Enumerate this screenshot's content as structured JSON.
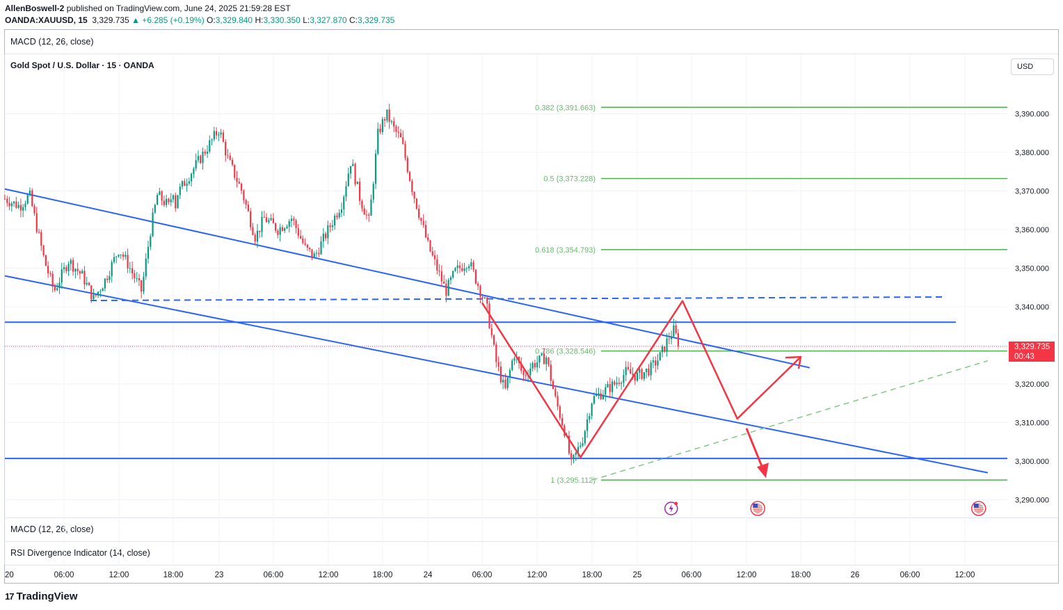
{
  "header": {
    "author": "AllenBoswell-2",
    "published_text": "published on TradingView.com, June 24, 2025 21:59:28 EST",
    "symbol": "OANDA:XAUUSD, 15",
    "last": "3,329.735",
    "change": "▲ +6.285 (+0.19%)",
    "o_label": "O:",
    "o_value": "3,329.840",
    "h_label": "H:",
    "h_value": "3,330.350",
    "l_label": "L:",
    "l_value": "3,327.870",
    "c_label": "C:",
    "c_value": "3,329.735"
  },
  "panes": {
    "macd_top": "MACD (12, 26, close)",
    "main_title": "Gold Spot / U.S. Dollar · 15 · OANDA",
    "macd_bottom": "MACD (12, 26, close)",
    "rsi": "RSI Divergence Indicator (14, close)"
  },
  "currency_button": "USD",
  "price_tag": {
    "price": "3,329.735",
    "countdown": "00:43"
  },
  "branding": {
    "logo": "TradingView",
    "mark": "17"
  },
  "colors": {
    "up": "#089981",
    "down": "#f23645",
    "trendline": "#2962ff",
    "fib": "#4caf50",
    "fib_text": "#66bb6a",
    "pattern": "#f23645",
    "event_lightning": "#9c27b0"
  },
  "events": [
    {
      "name": "lightning-event-icon",
      "x": "2025-06-25 03:45"
    },
    {
      "name": "us-flag-event-icon",
      "x": "2025-06-25 13:15"
    },
    {
      "name": "us-flag-event-icon",
      "x": "2025-06-26 13:30"
    }
  ],
  "chart_data": {
    "type": "candlestick",
    "title": "Gold Spot / U.S. Dollar · 15 · OANDA",
    "ylim": [
      3286.0,
      3400.0
    ],
    "y_ticks": [
      3290,
      3300,
      3310,
      3320,
      3330,
      3340,
      3350,
      3360,
      3370,
      3380,
      3390
    ],
    "y_tick_labels": [
      "3,290.000",
      "3,300.000",
      "3,310.000",
      "3,320.000",
      "3,330.000",
      "3,340.000",
      "3,350.000",
      "3,360.000",
      "3,370.000",
      "3,380.000",
      "3,390.000"
    ],
    "x_tick_labels": [
      "20",
      "06:00",
      "12:00",
      "18:00",
      "23",
      "06:00",
      "12:00",
      "18:00",
      "24",
      "06:00",
      "12:00",
      "18:00",
      "25",
      "06:00",
      "12:00",
      "18:00",
      "26",
      "06:00",
      "12:00"
    ],
    "x_ticks": [
      "2025-06-20 00:00",
      "2025-06-20 06:00",
      "2025-06-20 12:00",
      "2025-06-20 18:00",
      "2025-06-23 00:00",
      "2025-06-23 06:00",
      "2025-06-23 12:00",
      "2025-06-23 18:00",
      "2025-06-24 00:00",
      "2025-06-24 06:00",
      "2025-06-24 12:00",
      "2025-06-24 18:00",
      "2025-06-25 00:00",
      "2025-06-25 06:00",
      "2025-06-25 12:00",
      "2025-06-25 18:00",
      "2025-06-26 00:00",
      "2025-06-26 06:00",
      "2025-06-26 12:00"
    ],
    "last_price": 3329.735,
    "price_path": [
      {
        "x": "2025-06-20 00:00",
        "y": 3368
      },
      {
        "x": "2025-06-20 01:30",
        "y": 3366
      },
      {
        "x": "2025-06-20 02:30",
        "y": 3369
      },
      {
        "x": "2025-06-20 04:00",
        "y": 3352
      },
      {
        "x": "2025-06-20 05:00",
        "y": 3344
      },
      {
        "x": "2025-06-20 06:30",
        "y": 3352
      },
      {
        "x": "2025-06-20 08:00",
        "y": 3348
      },
      {
        "x": "2025-06-20 09:15",
        "y": 3342
      },
      {
        "x": "2025-06-20 10:30",
        "y": 3347
      },
      {
        "x": "2025-06-20 12:00",
        "y": 3355
      },
      {
        "x": "2025-06-20 13:00",
        "y": 3351
      },
      {
        "x": "2025-06-20 14:30",
        "y": 3344
      },
      {
        "x": "2025-06-20 15:30",
        "y": 3360
      },
      {
        "x": "2025-06-20 16:15",
        "y": 3369
      },
      {
        "x": "2025-06-20 17:30",
        "y": 3366
      },
      {
        "x": "2025-06-20 19:00",
        "y": 3371
      },
      {
        "x": "2025-06-20 20:30",
        "y": 3366
      },
      {
        "x": "2025-06-20 22:00",
        "y": 3369
      },
      {
        "x": "2025-06-23 00:00",
        "y": 3386
      },
      {
        "x": "2025-06-23 01:00",
        "y": 3378
      },
      {
        "x": "2025-06-23 02:30",
        "y": 3370
      },
      {
        "x": "2025-06-23 04:00",
        "y": 3358
      },
      {
        "x": "2025-06-23 05:00",
        "y": 3363
      },
      {
        "x": "2025-06-23 06:30",
        "y": 3360
      },
      {
        "x": "2025-06-23 08:00",
        "y": 3363
      },
      {
        "x": "2025-06-23 09:30",
        "y": 3355
      },
      {
        "x": "2025-06-23 10:30",
        "y": 3353
      },
      {
        "x": "2025-06-23 12:00",
        "y": 3360
      },
      {
        "x": "2025-06-23 13:30",
        "y": 3367
      },
      {
        "x": "2025-06-23 14:30",
        "y": 3378
      },
      {
        "x": "2025-06-23 15:30",
        "y": 3368
      },
      {
        "x": "2025-06-23 16:30",
        "y": 3362
      },
      {
        "x": "2025-06-23 17:30",
        "y": 3385
      },
      {
        "x": "2025-06-23 18:30",
        "y": 3390
      },
      {
        "x": "2025-06-23 19:30",
        "y": 3386
      },
      {
        "x": "2025-06-23 20:30",
        "y": 3383
      },
      {
        "x": "2025-06-23 22:00",
        "y": 3370
      },
      {
        "x": "2025-06-24 00:00",
        "y": 3356
      },
      {
        "x": "2025-06-24 01:00",
        "y": 3350
      },
      {
        "x": "2025-06-24 02:00",
        "y": 3344
      },
      {
        "x": "2025-06-24 03:00",
        "y": 3349
      },
      {
        "x": "2025-06-24 04:30",
        "y": 3352
      },
      {
        "x": "2025-06-24 05:30",
        "y": 3346
      },
      {
        "x": "2025-06-24 06:30",
        "y": 3340
      },
      {
        "x": "2025-06-24 07:30",
        "y": 3326
      },
      {
        "x": "2025-06-24 08:30",
        "y": 3318
      },
      {
        "x": "2025-06-24 09:30",
        "y": 3328
      },
      {
        "x": "2025-06-24 10:30",
        "y": 3322
      },
      {
        "x": "2025-06-24 11:30",
        "y": 3325
      },
      {
        "x": "2025-06-24 13:00",
        "y": 3327
      },
      {
        "x": "2025-06-24 14:00",
        "y": 3316
      },
      {
        "x": "2025-06-24 15:00",
        "y": 3308
      },
      {
        "x": "2025-06-24 15:45",
        "y": 3299
      },
      {
        "x": "2025-06-24 17:00",
        "y": 3306
      },
      {
        "x": "2025-06-24 18:00",
        "y": 3316
      },
      {
        "x": "2025-06-24 19:30",
        "y": 3318
      },
      {
        "x": "2025-06-24 21:00",
        "y": 3320
      },
      {
        "x": "2025-06-24 22:30",
        "y": 3323
      },
      {
        "x": "2025-06-25 00:00",
        "y": 3322
      },
      {
        "x": "2025-06-25 01:30",
        "y": 3324
      },
      {
        "x": "2025-06-25 02:30",
        "y": 3327
      },
      {
        "x": "2025-06-25 03:30",
        "y": 3332
      },
      {
        "x": "2025-06-25 04:00",
        "y": 3334
      },
      {
        "x": "2025-06-25 04:45",
        "y": 3329.7
      }
    ],
    "fibonacci": [
      {
        "label": "0.382 (3,391.663)",
        "value": 3391.663
      },
      {
        "label": "0.5 (3,373.228)",
        "value": 3373.228
      },
      {
        "label": "0.618 (3,354.793)",
        "value": 3354.793
      },
      {
        "label": "0.786 (3,328.546)",
        "value": 3328.546
      },
      {
        "label": "1 (3,295.112)",
        "value": 3295.112
      }
    ],
    "horizontal_lines": [
      3336.0,
      3300.7,
      3341.7
    ],
    "trendlines": [
      {
        "from": {
          "x": "2025-06-20 00:00",
          "y": 3370.5
        },
        "to": {
          "x": "2025-06-25 19:00",
          "y": 3324.2
        }
      },
      {
        "from": {
          "x": "2025-06-20 00:00",
          "y": 3348.0
        },
        "to": {
          "x": "2025-06-26 14:30",
          "y": 3297.0
        }
      },
      {
        "from": {
          "x": "2025-06-24 18:00",
          "y": 3295.1
        },
        "to": {
          "x": "2025-06-26 14:30",
          "y": 3326.0
        }
      }
    ],
    "projection_path": [
      {
        "x": "2025-06-24 06:00",
        "y": 3341.0
      },
      {
        "x": "2025-06-24 16:45",
        "y": 3301.0
      },
      {
        "x": "2025-06-25 05:00",
        "y": 3341.5
      },
      {
        "x": "2025-06-25 11:00",
        "y": 3311.0
      },
      {
        "x": "2025-06-25 18:00",
        "y": 3327.0
      }
    ],
    "projection_down_arrow": {
      "from": {
        "x": "2025-06-25 12:00",
        "y": 3308.5
      },
      "to": {
        "x": "2025-06-25 14:00",
        "y": 3296.0
      }
    }
  }
}
